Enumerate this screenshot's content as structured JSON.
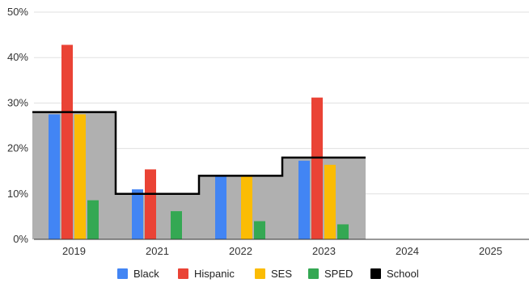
{
  "chart_data": {
    "type": "bar",
    "categories": [
      "2019",
      "2021",
      "2022",
      "2023",
      "2024",
      "2025"
    ],
    "series": [
      {
        "name": "Black",
        "color": "#4285F4",
        "values": [
          27.5,
          11,
          14,
          17.3,
          null,
          null
        ]
      },
      {
        "name": "Hispanic",
        "color": "#EA4335",
        "values": [
          42.8,
          15.4,
          null,
          31.2,
          null,
          null
        ]
      },
      {
        "name": "SES",
        "color": "#FBBC04",
        "values": [
          27.5,
          null,
          14,
          16.4,
          null,
          null
        ]
      },
      {
        "name": "SPED",
        "color": "#34A853",
        "values": [
          8.6,
          6.2,
          4,
          3.3,
          null,
          null
        ]
      }
    ],
    "school": {
      "name": "School",
      "color": "#000000",
      "fill": "#B0B0B0",
      "values": [
        28,
        10,
        14,
        18,
        null,
        null
      ]
    },
    "y_ticks": [
      0,
      10,
      20,
      30,
      40,
      50
    ],
    "y_tick_labels": [
      "0%",
      "10%",
      "20%",
      "30%",
      "40%",
      "50%"
    ],
    "ylim": [
      0,
      50
    ],
    "grid": true,
    "legend_position": "bottom",
    "title": "",
    "xlabel": "",
    "ylabel": ""
  }
}
